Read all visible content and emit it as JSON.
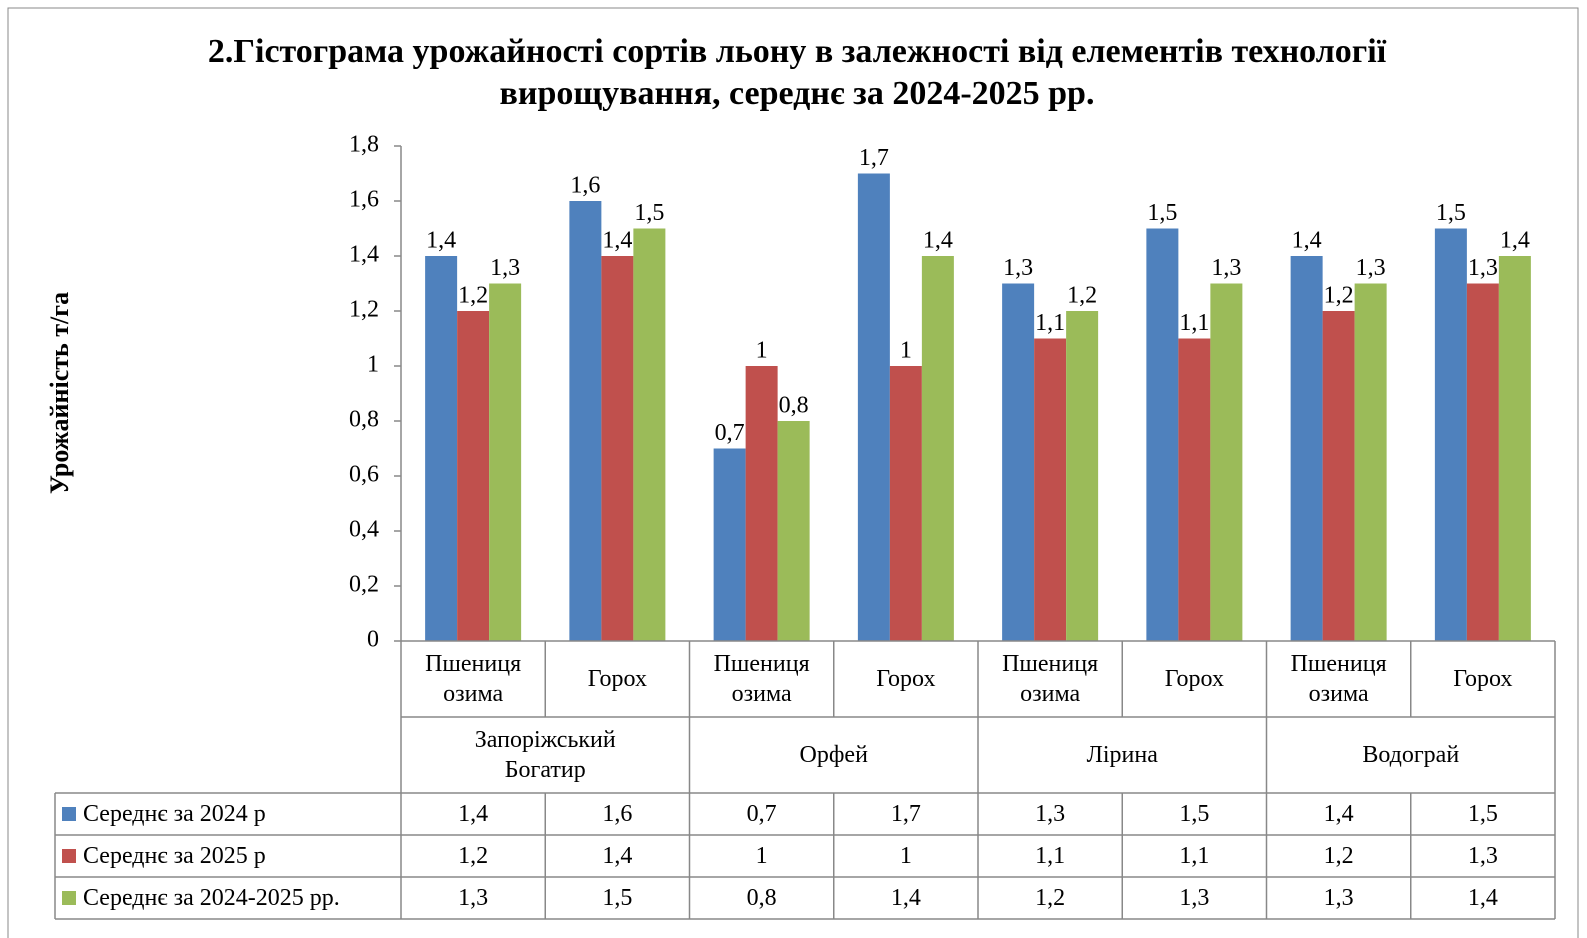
{
  "chart_data": {
    "type": "bar",
    "title": "2.Гістограма урожайності сортів льону в залежності від елементів технології вирощування, середнє за 2024-2025 рр.",
    "ylabel": "Урожайність т/га",
    "categories": [
      "Пшениця озима",
      "Горох",
      "Пшениця озима",
      "Горох",
      "Пшениця озима",
      "Горох",
      "Пшениця озима",
      "Горох"
    ],
    "groups": [
      "Запоріжський Богатир",
      "Орфей",
      "Лірина",
      "Водограй"
    ],
    "series": [
      {
        "name": "Середнє за 2024 р",
        "color": "#4f81bd",
        "values": [
          1.4,
          1.6,
          0.7,
          1.7,
          1.3,
          1.5,
          1.4,
          1.5
        ],
        "value_labels": [
          "1,4",
          "1,6",
          "0,7",
          "1,7",
          "1,3",
          "1,5",
          "1,4",
          "1,5"
        ]
      },
      {
        "name": "Середнє за 2025 р",
        "color": "#c0504d",
        "values": [
          1.2,
          1.4,
          1,
          1,
          1.1,
          1.1,
          1.2,
          1.3
        ],
        "value_labels": [
          "1,2",
          "1,4",
          "1",
          "1",
          "1,1",
          "1,1",
          "1,2",
          "1,3"
        ]
      },
      {
        "name": "Середнє за 2024-2025 рр.",
        "color": "#9bbb59",
        "values": [
          1.3,
          1.5,
          0.8,
          1.4,
          1.2,
          1.3,
          1.3,
          1.4
        ],
        "value_labels": [
          "1,3",
          "1,5",
          "0,8",
          "1,4",
          "1,2",
          "1,3",
          "1,3",
          "1,4"
        ]
      }
    ],
    "ylim": [
      0,
      1.8
    ],
    "yticks": [
      0,
      {
        "value": 0.2,
        "label": "0,2"
      },
      {
        "value": 0.4,
        "label": "0,4"
      },
      {
        "value": 0.6,
        "label": "0,6"
      },
      {
        "value": 0.8,
        "label": "0,8"
      },
      1,
      {
        "value": 1.2,
        "label": "1,2"
      },
      {
        "value": 1.4,
        "label": "1,4"
      },
      {
        "value": 1.6,
        "label": "1,6"
      },
      {
        "value": 1.8,
        "label": "1,8"
      }
    ],
    "grid": false,
    "data_table": true
  }
}
